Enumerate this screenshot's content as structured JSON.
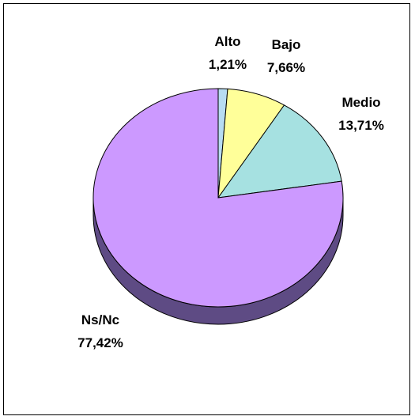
{
  "chart_data": {
    "type": "pie",
    "style": "3d",
    "title": "",
    "slices": [
      {
        "label": "Alto",
        "value": 1.21,
        "value_text": "1,21%",
        "color": "#b7dcf2"
      },
      {
        "label": "Bajo",
        "value": 7.66,
        "value_text": "7,66%",
        "color": "#ffff99"
      },
      {
        "label": "Medio",
        "value": 13.71,
        "value_text": "13,71%",
        "color": "#a6e1e1"
      },
      {
        "label": "Ns/Nc",
        "value": 77.42,
        "value_text": "77,42%",
        "color": "#cc99ff"
      }
    ],
    "legend": "none",
    "label_style": "outside labels with category and percentage"
  }
}
